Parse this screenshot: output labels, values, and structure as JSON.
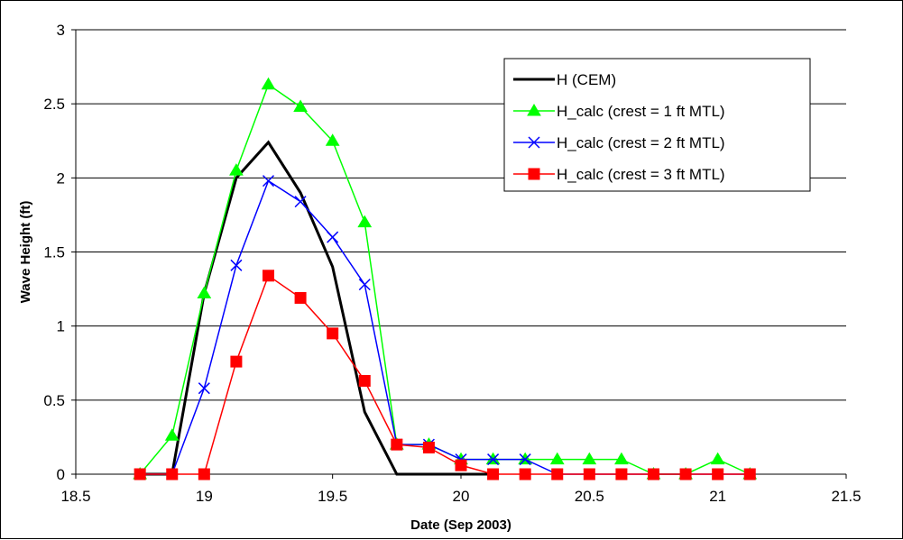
{
  "chart_data": {
    "type": "line",
    "xlabel": "Date (Sep 2003)",
    "ylabel": "Wave Height (ft)",
    "xlim": [
      18.5,
      21.5
    ],
    "ylim": [
      0,
      3
    ],
    "xticks": [
      18.5,
      19,
      19.5,
      20,
      20.5,
      21,
      21.5
    ],
    "xtick_labels": [
      "18.5",
      "19",
      "19.5",
      "20",
      "20.5",
      "21",
      "21.5"
    ],
    "yticks": [
      0,
      0.5,
      1,
      1.5,
      2,
      2.5,
      3
    ],
    "ytick_labels": [
      "0",
      "0.5",
      "1",
      "1.5",
      "2",
      "2.5",
      "3"
    ],
    "grid": "horizontal",
    "legend_position": "top-right",
    "x": [
      18.75,
      18.875,
      19.0,
      19.125,
      19.25,
      19.375,
      19.5,
      19.625,
      19.75,
      19.875,
      20.0,
      20.125,
      20.25,
      20.375,
      20.5,
      20.625,
      20.75,
      20.875,
      21.0,
      21.125
    ],
    "series": [
      {
        "name": "H (CEM)",
        "color": "#000000",
        "marker": "none",
        "values": [
          0,
          0,
          1.22,
          2.0,
          2.24,
          1.9,
          1.4,
          0.42,
          0,
          0,
          0,
          0,
          null,
          null,
          null,
          null,
          null,
          null,
          null,
          null
        ]
      },
      {
        "name": "H_calc (crest = 1 ft MTL)",
        "color": "#00ff00",
        "marker": "triangle",
        "values": [
          0,
          0.26,
          1.22,
          2.05,
          2.63,
          2.48,
          2.25,
          1.7,
          0.2,
          0.2,
          0.1,
          0.1,
          0.1,
          0.1,
          0.1,
          0.1,
          0,
          0,
          0.1,
          0
        ]
      },
      {
        "name": "H_calc (crest = 2 ft MTL)",
        "color": "#0000ff",
        "marker": "x",
        "values": [
          0,
          0,
          0.58,
          1.41,
          1.98,
          1.84,
          1.6,
          1.28,
          0.2,
          0.2,
          0.1,
          0.1,
          0.1,
          0,
          0,
          0,
          0,
          0,
          0,
          0
        ]
      },
      {
        "name": "H_calc (crest = 3 ft MTL)",
        "color": "#ff0000",
        "marker": "square",
        "values": [
          0,
          0,
          0,
          0.76,
          1.34,
          1.19,
          0.95,
          0.63,
          0.2,
          0.18,
          0.06,
          0,
          0,
          0,
          0,
          0,
          0,
          0,
          0,
          0
        ]
      }
    ]
  }
}
